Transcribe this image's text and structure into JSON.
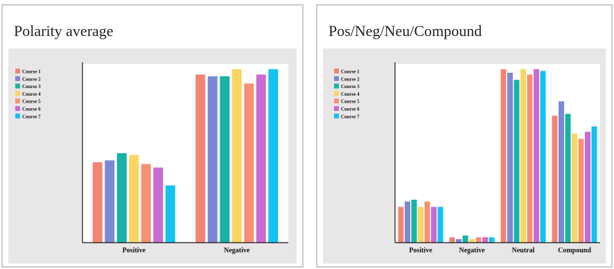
{
  "colors": {
    "series": [
      "#f28572",
      "#7b88d3",
      "#17b3a6",
      "#fad562",
      "#f79173",
      "#c96ad5",
      "#13c2f0"
    ],
    "axis": "#111111",
    "plot_bg": "#e8e6e7",
    "plot_area": "#ffffff",
    "border": "#c9c9c9"
  },
  "chart_data": [
    {
      "type": "bar",
      "title": "Polarity average",
      "xlabel": "",
      "ylabel": "",
      "categories": [
        "Positive",
        "Negative"
      ],
      "ylim": [
        0,
        1
      ],
      "grid": false,
      "legend": "top-left",
      "series": [
        {
          "name": "Course 1",
          "values": [
            0.45,
            0.94
          ]
        },
        {
          "name": "Course 2",
          "values": [
            0.46,
            0.93
          ]
        },
        {
          "name": "Course 3",
          "values": [
            0.5,
            0.93
          ]
        },
        {
          "name": "Course 4",
          "values": [
            0.49,
            0.97
          ]
        },
        {
          "name": "Course 5",
          "values": [
            0.44,
            0.89
          ]
        },
        {
          "name": "Course 6",
          "values": [
            0.42,
            0.94
          ]
        },
        {
          "name": "Course 7",
          "values": [
            0.32,
            0.97
          ]
        }
      ]
    },
    {
      "type": "bar",
      "title": "Pos/Neg/Neu/Compound",
      "xlabel": "",
      "ylabel": "",
      "categories": [
        "Positive",
        "Negative",
        "Neutral",
        "Compound"
      ],
      "ylim": [
        0,
        1
      ],
      "grid": false,
      "legend": "top-left",
      "series": [
        {
          "name": "Course 1",
          "values": [
            0.2,
            0.03,
            0.97,
            0.71
          ]
        },
        {
          "name": "Course 2",
          "values": [
            0.23,
            0.02,
            0.95,
            0.79
          ]
        },
        {
          "name": "Course 3",
          "values": [
            0.24,
            0.04,
            0.91,
            0.72
          ]
        },
        {
          "name": "Course 4",
          "values": [
            0.2,
            0.02,
            0.97,
            0.61
          ]
        },
        {
          "name": "Course 5",
          "values": [
            0.23,
            0.03,
            0.94,
            0.58
          ]
        },
        {
          "name": "Course 6",
          "values": [
            0.2,
            0.03,
            0.97,
            0.62
          ]
        },
        {
          "name": "Course 7",
          "values": [
            0.2,
            0.03,
            0.96,
            0.65
          ]
        }
      ]
    }
  ]
}
